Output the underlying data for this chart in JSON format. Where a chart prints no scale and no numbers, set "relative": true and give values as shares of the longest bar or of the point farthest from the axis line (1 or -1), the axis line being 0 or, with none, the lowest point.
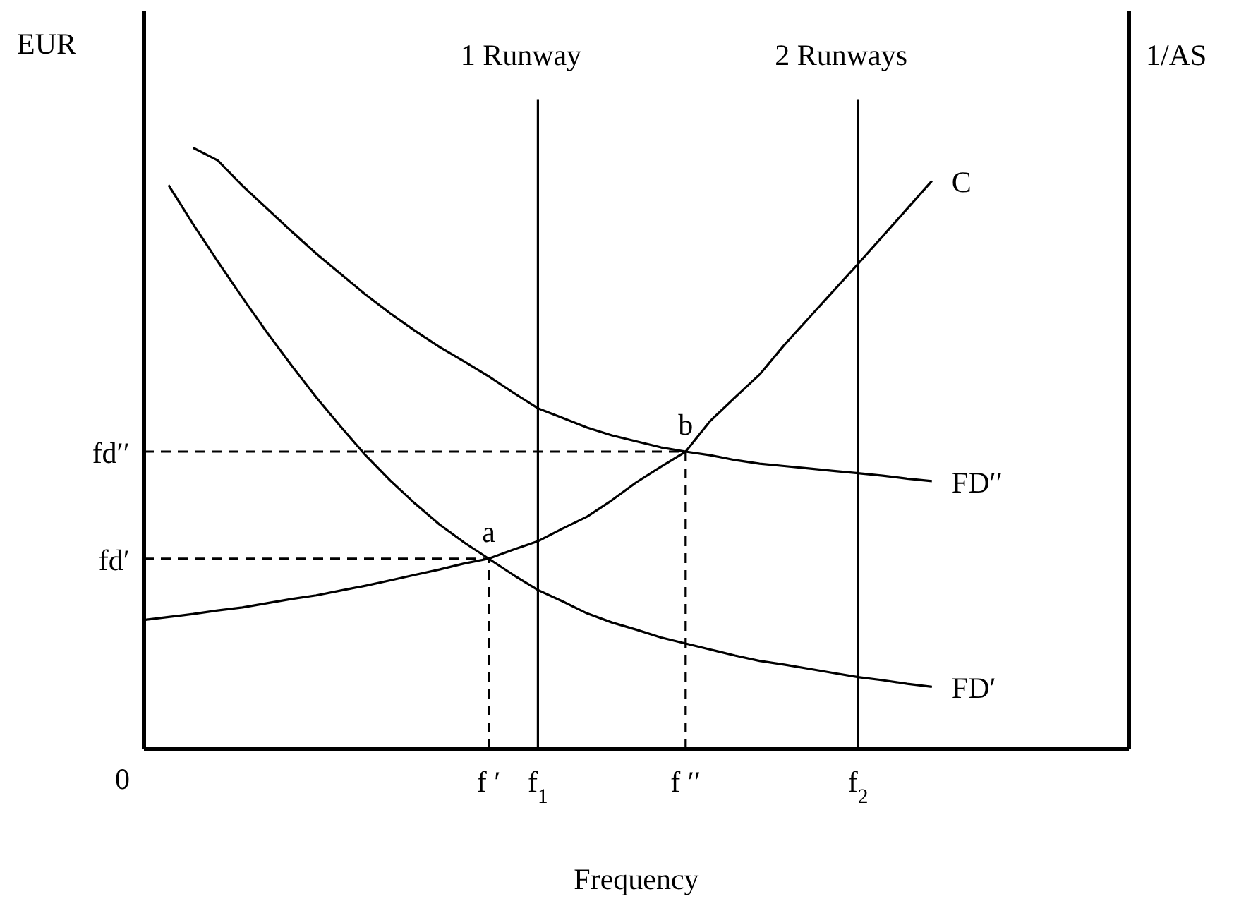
{
  "chart_data": {
    "type": "line",
    "relative": true,
    "xlabel": "Frequency",
    "ylabel": "EUR",
    "y2label": "1/AS",
    "categories": [
      null,
      null,
      null,
      null,
      null,
      null,
      null,
      null,
      null,
      null,
      null,
      null,
      null,
      null,
      "f ′",
      null,
      "f$_{1}$",
      null,
      null,
      null,
      null,
      null,
      "f ′′",
      null,
      null,
      null,
      null,
      null,
      null,
      "f$_{2}$",
      null,
      null,
      null,
      null,
      null,
      null,
      null,
      null,
      null,
      null,
      null
    ],
    "series": [
      {
        "name": "FD′",
        "color": "#000000",
        "values": [
          null,
          0.938,
          0.873,
          0.811,
          0.751,
          0.693,
          0.638,
          0.585,
          0.536,
          0.489,
          0.447,
          0.409,
          0.374,
          0.344,
          0.317,
          0.29,
          0.265,
          0.246,
          0.226,
          0.211,
          0.199,
          0.186,
          0.176,
          0.166,
          0.156,
          0.147,
          0.141,
          0.134,
          0.127,
          0.12,
          0.115,
          0.109,
          0.104,
          null,
          null,
          null,
          null,
          null,
          null,
          null,
          null
        ]
      },
      {
        "name": "FD′′",
        "color": "#000000",
        "values": [
          null,
          null,
          1,
          0.979,
          0.937,
          0.899,
          0.861,
          0.824,
          0.79,
          0.756,
          0.725,
          0.696,
          0.669,
          0.645,
          0.62,
          0.593,
          0.567,
          0.551,
          0.535,
          0.522,
          0.512,
          0.502,
          0.495,
          0.489,
          0.481,
          0.475,
          0.471,
          0.467,
          0.463,
          0.459,
          0.455,
          0.45,
          0.446,
          null,
          null,
          null,
          null,
          null,
          null,
          null,
          null
        ]
      },
      {
        "name": "C",
        "color": "#000000",
        "values": [
          0.215,
          0.22,
          0.225,
          0.231,
          0.236,
          0.243,
          0.25,
          0.256,
          0.264,
          0.272,
          0.281,
          0.29,
          0.299,
          0.309,
          0.317,
          0.332,
          0.346,
          0.367,
          0.387,
          0.414,
          0.444,
          0.47,
          0.495,
          0.546,
          0.585,
          0.623,
          0.672,
          0.717,
          0.762,
          0.807,
          0.853,
          0.899,
          0.945,
          null,
          null,
          null,
          null,
          null,
          null,
          null,
          null
        ]
      }
    ],
    "ref_lines": [
      {
        "axis": "x",
        "value": "f$_{1}$",
        "label": "1 Runway",
        "color": "#000000"
      },
      {
        "axis": "x",
        "value": "f$_{2}$",
        "label": "2 Runways",
        "color": "#000000"
      },
      {
        "axis": "y",
        "value": 0.317,
        "label": "fd′",
        "color": "#000000",
        "line_style": "dashed"
      },
      {
        "axis": "y",
        "value": 0.495,
        "label": "fd′′",
        "color": "#000000",
        "line_style": "dashed"
      },
      {
        "axis": "x",
        "value": "f ′",
        "color": "#000000",
        "line_style": "dashed"
      },
      {
        "axis": "x",
        "value": "f ′′",
        "color": "#000000",
        "line_style": "dashed"
      }
    ],
    "annotations": [
      "0",
      {
        "text": "a",
        "x": "f ′",
        "y": 0.317
      },
      {
        "text": "b",
        "x": "f ′′",
        "y": 0.495
      }
    ],
    "marker": "none",
    "line_style": "solid"
  }
}
